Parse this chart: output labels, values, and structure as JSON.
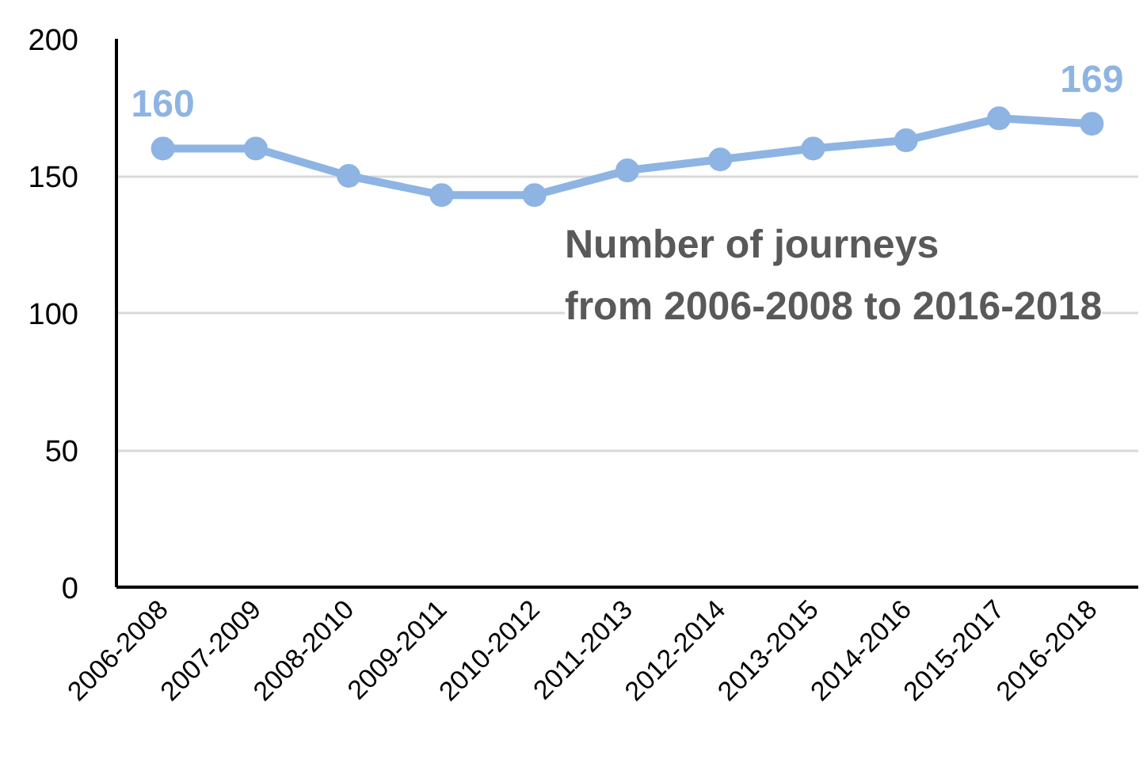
{
  "chart_data": {
    "type": "line",
    "categories": [
      "2006-2008",
      "2007-2009",
      "2008-2010",
      "2009-2011",
      "2010-2012",
      "2011-2013",
      "2012-2014",
      "2013-2015",
      "2014-2016",
      "2015-2017",
      "2016-2018"
    ],
    "series": [
      {
        "color": "#8eb4e3",
        "values": [
          160,
          160,
          150,
          143,
          143,
          152,
          156,
          160,
          163,
          171,
          169
        ],
        "value_labels": [
          "160",
          null,
          null,
          null,
          null,
          null,
          null,
          null,
          null,
          null,
          "169"
        ]
      }
    ],
    "ylim": [
      0,
      200
    ],
    "yticks": [
      0,
      50,
      100,
      150,
      200
    ],
    "grid": "y",
    "marker": "circle",
    "line_style": "solid",
    "annotations": [
      "Number of journeys\nfrom 2006-2008 to 2016-2018"
    ]
  }
}
